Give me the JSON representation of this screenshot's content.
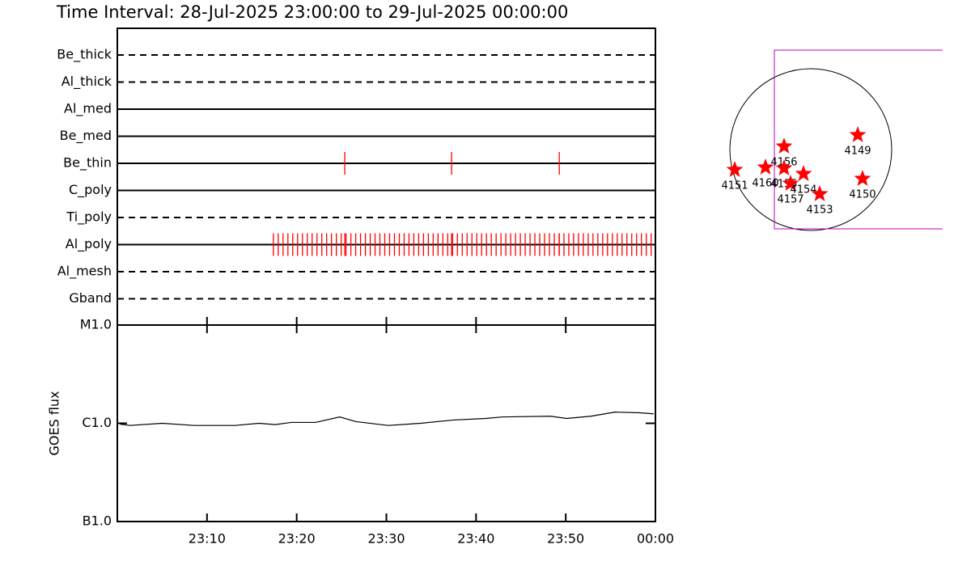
{
  "chart_data": [
    {
      "type": "timeline",
      "title": "Time Interval: 28-Jul-2025 23:00:00 to 29-Jul-2025 00:00:00",
      "color": "#ff0000",
      "xlim": [
        0,
        60
      ],
      "filters": [
        {
          "name": "Be_thick",
          "style": "dashed",
          "times": []
        },
        {
          "name": "Al_thick",
          "style": "dashed",
          "times": []
        },
        {
          "name": "Al_med",
          "style": "solid",
          "times": []
        },
        {
          "name": "Be_med",
          "style": "solid",
          "times": []
        },
        {
          "name": "Be_thin",
          "style": "solid",
          "times": [
            25.36,
            37.27,
            49.28
          ]
        },
        {
          "name": "C_poly",
          "style": "solid",
          "times": []
        },
        {
          "name": "Ti_poly",
          "style": "dashed",
          "times": []
        },
        {
          "name": "Al_poly",
          "style": "solid",
          "times": [
            17.4,
            17.94,
            18.48,
            19.02,
            19.56,
            20.1,
            20.64,
            21.18,
            21.72,
            22.26,
            22.8,
            23.34,
            23.88,
            24.42,
            24.96,
            25.36,
            25.5,
            26.04,
            26.58,
            27.12,
            27.66,
            28.2,
            28.74,
            29.28,
            29.82,
            30.36,
            30.9,
            31.44,
            31.98,
            32.52,
            33.06,
            33.6,
            34.14,
            34.68,
            35.22,
            35.76,
            36.3,
            36.84,
            37.27,
            37.38,
            37.92,
            38.46,
            39.0,
            39.54,
            40.08,
            40.62,
            41.16,
            41.7,
            42.24,
            42.78,
            43.32,
            43.86,
            44.4,
            44.94,
            45.48,
            46.02,
            46.56,
            47.1,
            47.64,
            48.18,
            48.72,
            49.26,
            49.28,
            49.8,
            50.34,
            50.88,
            51.42,
            51.96,
            52.5,
            53.04,
            53.58,
            54.12,
            54.66,
            55.2,
            55.74,
            56.28,
            56.82,
            57.36,
            57.9,
            58.44,
            58.98,
            59.52
          ]
        },
        {
          "name": "Al_mesh",
          "style": "dashed",
          "times": []
        },
        {
          "name": "Gband",
          "style": "dashed",
          "times": []
        }
      ]
    },
    {
      "type": "line",
      "ylabel": "GOES flux",
      "log_scale": true,
      "color": "#000000",
      "xlim": [
        0,
        60
      ],
      "xticks": [
        {
          "value": 10,
          "label": "23:10"
        },
        {
          "value": 20,
          "label": "23:20"
        },
        {
          "value": 30,
          "label": "23:30"
        },
        {
          "value": 40,
          "label": "23:40"
        },
        {
          "value": 50,
          "label": "23:50"
        },
        {
          "value": 60,
          "label": "00:00"
        }
      ],
      "ylim": [
        1e-07,
        1e-05
      ],
      "yticks": [
        {
          "value": 1e-05,
          "label": "M1.0"
        },
        {
          "value": 1e-06,
          "label": "C1.0"
        },
        {
          "value": 1e-07,
          "label": "B1.0"
        }
      ],
      "x": [
        0.3,
        1.4,
        5,
        8.6,
        13.1,
        15.8,
        17.6,
        19.4,
        22.1,
        24.8,
        26.6,
        30.2,
        33.8,
        37.5,
        41.1,
        42.9,
        48.3,
        50.1,
        52.8,
        55.5,
        58.2,
        59.8
      ],
      "values": [
        9.8e-07,
        9.5e-07,
        1e-06,
        9.5e-07,
        9.5e-07,
        1e-06,
        9.7e-07,
        1.02e-06,
        1.02e-06,
        1.16e-06,
        1.04e-06,
        9.5e-07,
        1e-06,
        1.08e-06,
        1.12e-06,
        1.16e-06,
        1.18e-06,
        1.12e-06,
        1.18e-06,
        1.3e-06,
        1.28e-06,
        1.25e-06
      ]
    },
    {
      "type": "scatter",
      "color": "#ff0000",
      "labels": [
        "4149",
        "4150",
        "4151",
        "4160",
        "4156",
        "4155",
        "4157",
        "4154",
        "4153"
      ],
      "x": [
        557,
        614,
        -902,
        -538,
        -317,
        -317,
        -240,
        -86,
        106
      ],
      "values": [
        173,
        -346,
        -240,
        -211,
        38,
        -221,
        -403,
        -288,
        -528
      ]
    }
  ]
}
